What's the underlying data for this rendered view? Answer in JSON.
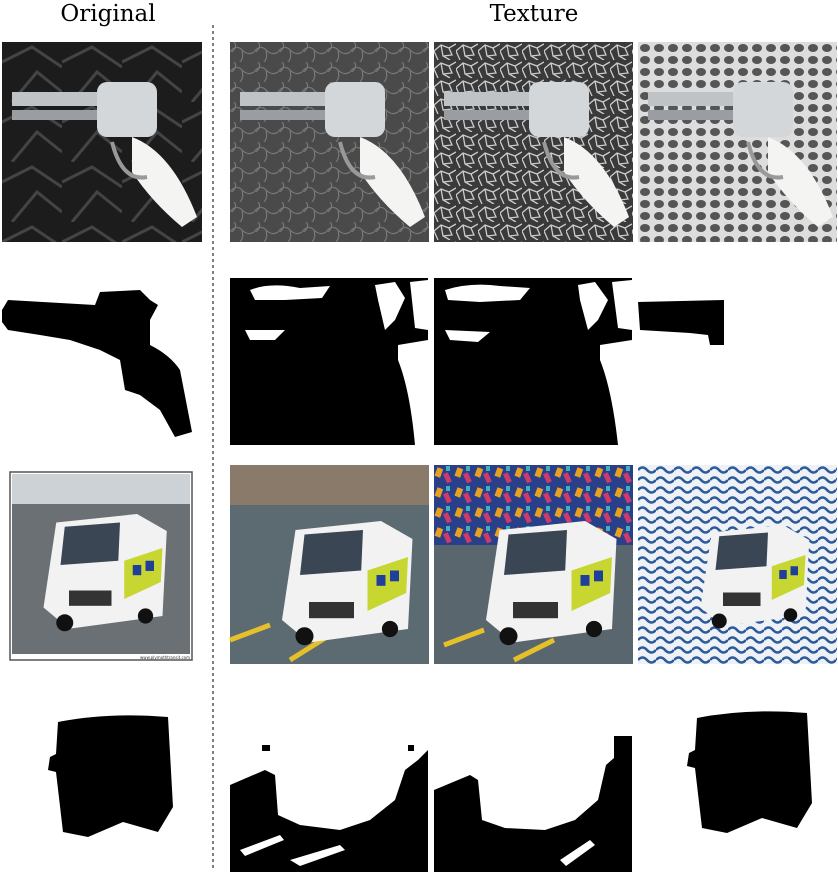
{
  "headers": {
    "original": "Original",
    "texture": "Texture"
  },
  "images": {
    "van_watermark": "www.plymothtransit.com"
  }
}
